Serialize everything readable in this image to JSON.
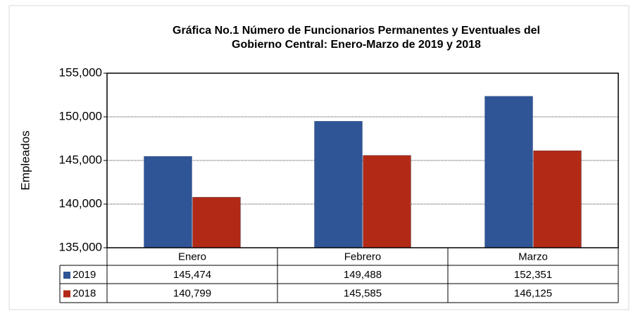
{
  "chart_data": {
    "type": "bar",
    "title": "Gráfica No.1 Número de Funcionarios  Permanentes y Eventuales del Gobierno Central: Enero-Marzo  de  2019 y 2018",
    "title_lines": [
      "Gráfica No.1 Número de Funcionarios  Permanentes y Eventuales del",
      "Gobierno Central: Enero-Marzo  de  2019 y 2018"
    ],
    "y_label": "Empleados",
    "categories": [
      "Enero",
      "Febrero",
      "Marzo"
    ],
    "series": [
      {
        "name": "2019",
        "color": "#2f5597",
        "values": [
          145474,
          149488,
          152351
        ],
        "value_labels": [
          "145,474",
          "149,488",
          "152,351"
        ]
      },
      {
        "name": "2018",
        "color": "#b22a16",
        "values": [
          140799,
          145585,
          146125
        ],
        "value_labels": [
          "140,799",
          "145,585",
          "146,125"
        ]
      }
    ],
    "ylim": [
      135000,
      155000
    ],
    "yticks": [
      {
        "value": 135000,
        "label": "135,000"
      },
      {
        "value": 140000,
        "label": "140,000"
      },
      {
        "value": 145000,
        "label": "145,000"
      },
      {
        "value": 150000,
        "label": "150,000"
      },
      {
        "value": 155000,
        "label": "155,000"
      }
    ],
    "grid": true
  }
}
